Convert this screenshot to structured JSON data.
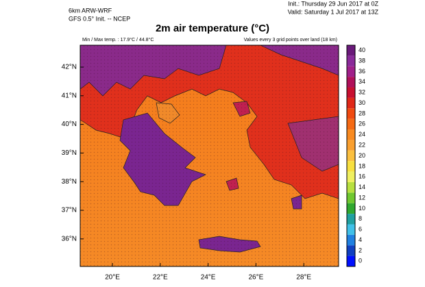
{
  "header": {
    "model": "6km ARW-WRF",
    "source": "GFS 0.5° Init. -- NCEP",
    "init": "Init.: Thursday 29 Jun 2017 at 0Z",
    "valid": "Valid: Saturday 1 Jul 2017 at 13Z"
  },
  "title": "2m air temperature (°C)",
  "minmax": "Min / Max temp. : 17.9°C / 44.8°C",
  "note": "Values every 3 grid points over land (18 km)",
  "lat_labels": [
    "42°N",
    "41°N",
    "40°N",
    "39°N",
    "38°N",
    "37°N",
    "36°N"
  ],
  "lon_labels": [
    "20°E",
    "22°E",
    "24°E",
    "26°E",
    "28°E"
  ],
  "colorbar": {
    "labels": [
      40,
      38,
      36,
      34,
      32,
      30,
      28,
      26,
      24,
      22,
      20,
      18,
      16,
      14,
      12,
      10,
      8,
      6,
      4,
      2,
      0
    ]
  }
}
